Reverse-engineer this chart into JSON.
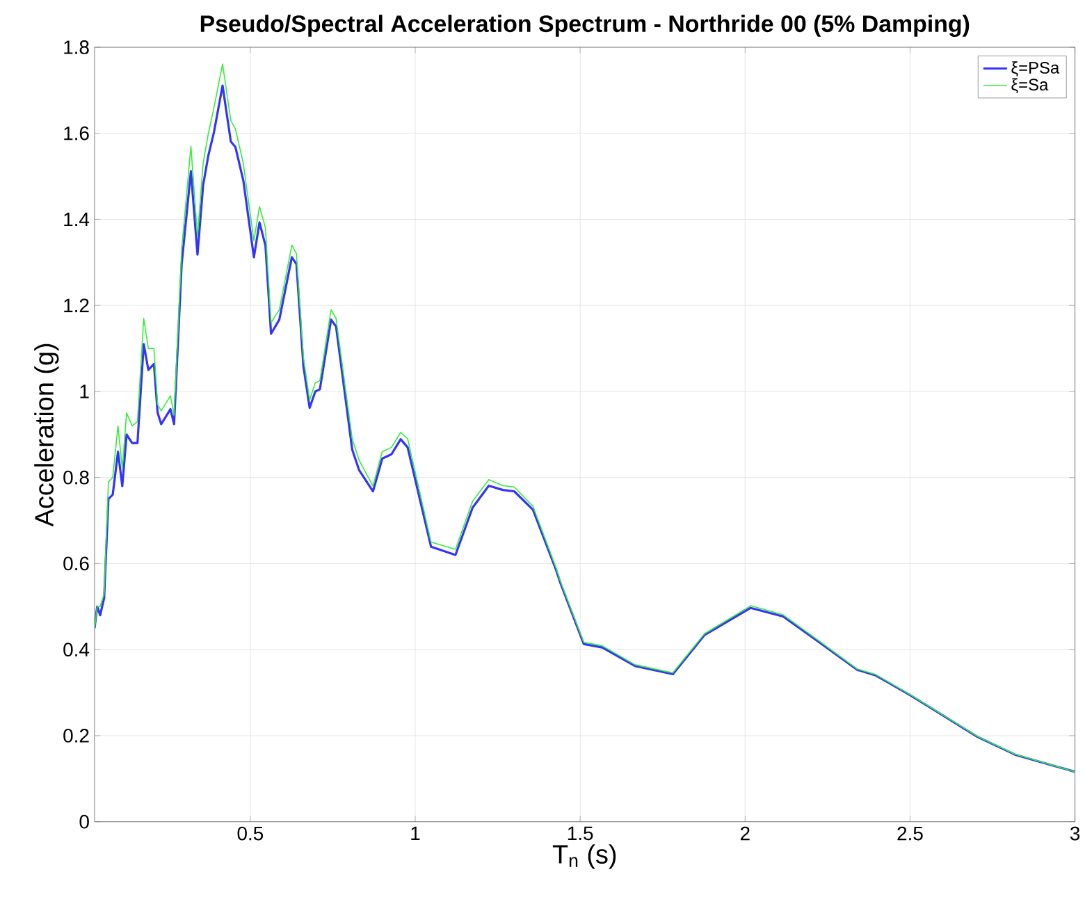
{
  "chart_data": {
    "type": "line",
    "title": "Pseudo/Spectral Acceleration Spectrum - Northride 00 (5% Damping)",
    "xlabel": "T$_{n}$ (s)",
    "ylabel": "Acceleration (g)",
    "x": [
      0.028,
      0.036,
      0.045,
      0.057,
      0.07,
      0.083,
      0.099,
      0.112,
      0.125,
      0.142,
      0.158,
      0.177,
      0.191,
      0.208,
      0.219,
      0.23,
      0.258,
      0.269,
      0.292,
      0.32,
      0.34,
      0.357,
      0.373,
      0.39,
      0.416,
      0.441,
      0.455,
      0.479,
      0.511,
      0.528,
      0.546,
      0.563,
      0.588,
      0.626,
      0.64,
      0.661,
      0.68,
      0.697,
      0.711,
      0.745,
      0.76,
      0.809,
      0.83,
      0.872,
      0.9,
      0.928,
      0.956,
      0.977,
      1.048,
      1.122,
      1.174,
      1.223,
      1.266,
      1.3,
      1.357,
      1.427,
      1.441,
      1.511,
      1.567,
      1.666,
      1.781,
      1.877,
      2.017,
      2.115,
      2.214,
      2.34,
      2.396,
      2.501,
      2.705,
      2.818,
      3.0
    ],
    "series": [
      {
        "name": "ξ=PSa",
        "color": "#3333ff",
        "values": [
          0.45,
          0.5,
          0.48,
          0.52,
          0.75,
          0.76,
          0.86,
          0.78,
          0.9,
          0.88,
          0.88,
          1.11,
          1.05,
          1.064,
          0.951,
          0.924,
          0.959,
          0.924,
          1.296,
          1.512,
          1.318,
          1.479,
          1.549,
          1.603,
          1.711,
          1.581,
          1.568,
          1.49,
          1.312,
          1.393,
          1.339,
          1.134,
          1.167,
          1.312,
          1.296,
          1.059,
          0.962,
          1.0,
          1.005,
          1.167,
          1.151,
          0.865,
          0.817,
          0.768,
          0.844,
          0.854,
          0.889,
          0.87,
          0.639,
          0.62,
          0.73,
          0.781,
          0.771,
          0.768,
          0.725,
          0.585,
          0.553,
          0.413,
          0.405,
          0.362,
          0.343,
          0.434,
          0.497,
          0.477,
          0.423,
          0.353,
          0.34,
          0.294,
          0.197,
          0.156,
          0.116
        ]
      },
      {
        "name": "ξ=Sa",
        "color": "#33ee33",
        "values": [
          0.45,
          0.5,
          0.5,
          0.53,
          0.79,
          0.8,
          0.92,
          0.82,
          0.95,
          0.92,
          0.93,
          1.17,
          1.1,
          1.1,
          0.97,
          0.955,
          0.99,
          0.945,
          1.33,
          1.57,
          1.36,
          1.53,
          1.6,
          1.66,
          1.761,
          1.63,
          1.61,
          1.53,
          1.35,
          1.43,
          1.38,
          1.16,
          1.19,
          1.34,
          1.32,
          1.08,
          0.98,
          1.02,
          1.025,
          1.19,
          1.17,
          0.89,
          0.84,
          0.78,
          0.86,
          0.87,
          0.905,
          0.89,
          0.65,
          0.633,
          0.745,
          0.795,
          0.781,
          0.778,
          0.733,
          0.59,
          0.557,
          0.417,
          0.409,
          0.365,
          0.346,
          0.437,
          0.502,
          0.481,
          0.426,
          0.355,
          0.342,
          0.295,
          0.198,
          0.157,
          0.116
        ]
      }
    ],
    "xlim": [
      0.028,
      3
    ],
    "ylim": [
      0,
      1.8
    ],
    "xticks": [
      0.5,
      1,
      1.5,
      2,
      2.5,
      3
    ],
    "yticks": [
      0,
      0.2,
      0.4,
      0.6,
      0.8,
      1,
      1.2,
      1.4,
      1.6,
      1.8
    ],
    "grid": true,
    "legend": "top right",
    "marker": "none",
    "line_style": "solid"
  }
}
